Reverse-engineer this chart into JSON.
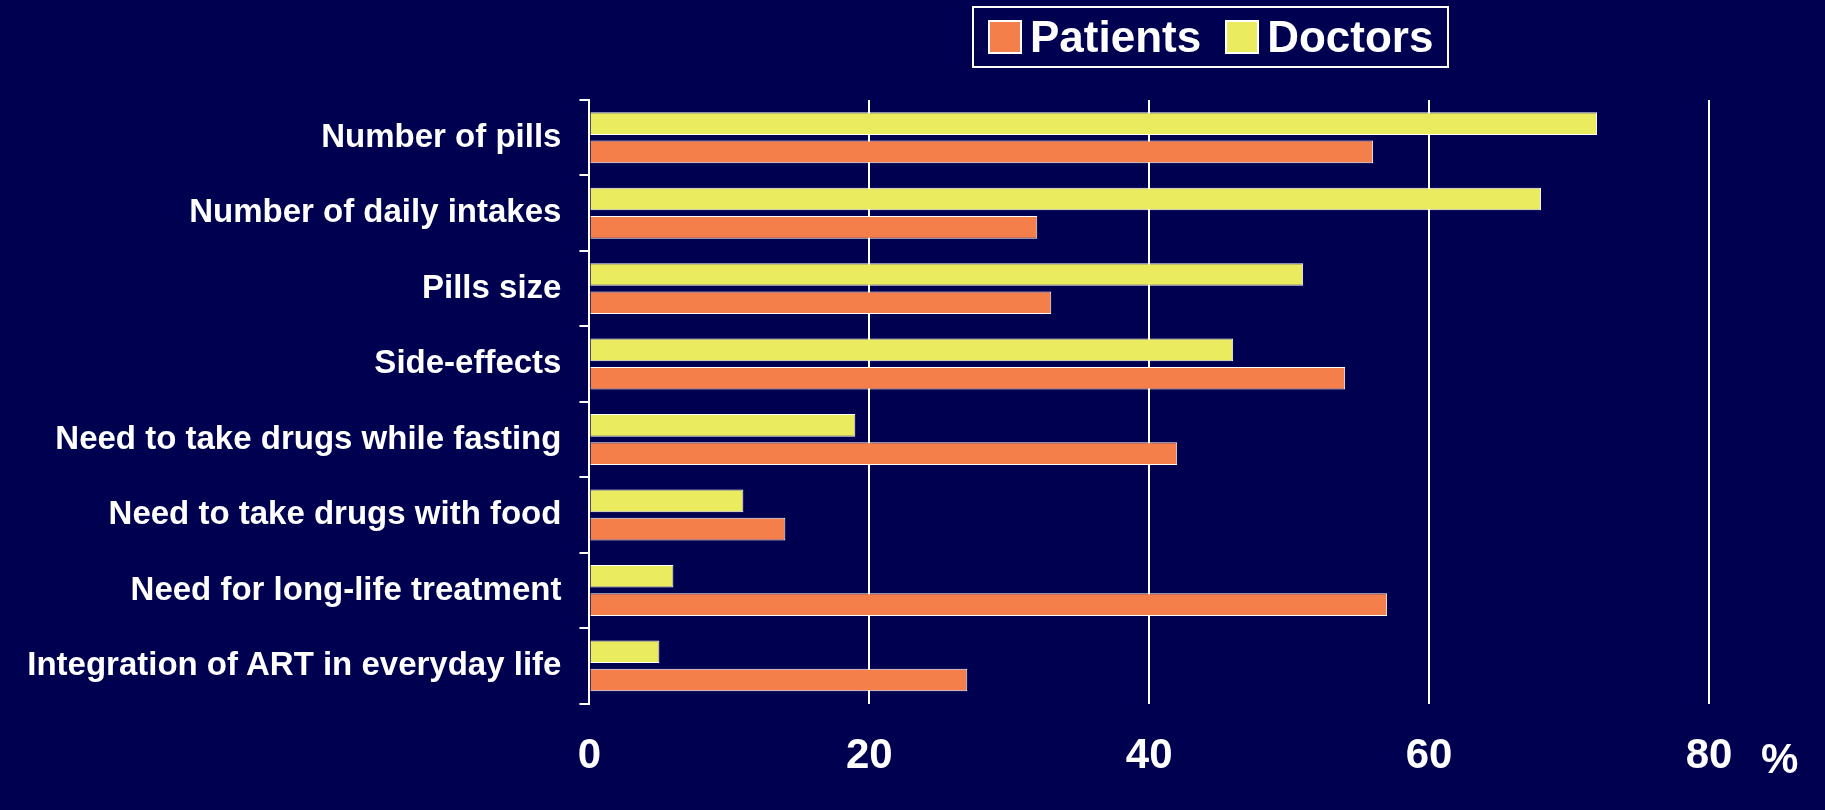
{
  "chart_data": {
    "type": "bar",
    "orientation": "horizontal",
    "xlabel": "%",
    "categories": [
      "Number of pills",
      "Number of daily intakes",
      "Pills size",
      "Side-effects",
      "Need to take drugs while fasting",
      "Need to take drugs with food",
      "Need for long-life treatment",
      "Integration of ART in everyday life"
    ],
    "series": [
      {
        "name": "Patients",
        "color": "#f47f4a",
        "values": [
          56,
          32,
          33,
          54,
          42,
          14,
          57,
          27
        ]
      },
      {
        "name": "Doctors",
        "color": "#ebeb60",
        "values": [
          72,
          68,
          51,
          46,
          19,
          11,
          6,
          5
        ]
      }
    ],
    "xlim": [
      0,
      80
    ],
    "xticks": [
      0,
      20,
      40,
      60,
      80
    ],
    "grid": "x",
    "legend": "top"
  }
}
